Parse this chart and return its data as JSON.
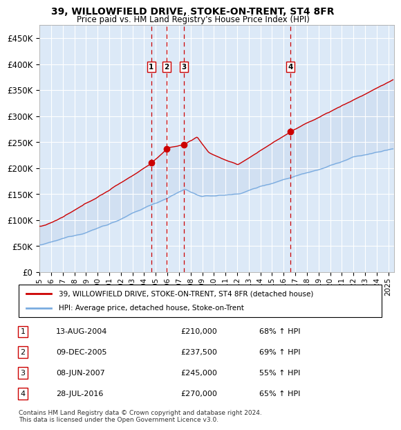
{
  "title": "39, WILLOWFIELD DRIVE, STOKE-ON-TRENT, ST4 8FR",
  "subtitle": "Price paid vs. HM Land Registry's House Price Index (HPI)",
  "ylim": [
    0,
    475000
  ],
  "yticks": [
    0,
    50000,
    100000,
    150000,
    200000,
    250000,
    300000,
    350000,
    400000,
    450000
  ],
  "ytick_labels": [
    "£0",
    "£50K",
    "£100K",
    "£150K",
    "£200K",
    "£250K",
    "£300K",
    "£350K",
    "£400K",
    "£450K"
  ],
  "xlim_start": 1995.0,
  "xlim_end": 2025.5,
  "background_color": "#dce9f7",
  "grid_color": "#ffffff",
  "red_line_color": "#cc0000",
  "blue_line_color": "#7aace0",
  "vline_color": "#cc0000",
  "transactions": [
    {
      "num": 1,
      "date_str": "13-AUG-2004",
      "year": 2004.62,
      "price": 210000,
      "pct": "68%",
      "direction": "↑"
    },
    {
      "num": 2,
      "date_str": "09-DEC-2005",
      "year": 2005.93,
      "price": 237500,
      "pct": "69%",
      "direction": "↑"
    },
    {
      "num": 3,
      "date_str": "08-JUN-2007",
      "year": 2007.43,
      "price": 245000,
      "pct": "55%",
      "direction": "↑"
    },
    {
      "num": 4,
      "date_str": "28-JUL-2016",
      "year": 2016.57,
      "price": 270000,
      "pct": "65%",
      "direction": "↑"
    }
  ],
  "legend_entries": [
    {
      "label": "39, WILLOWFIELD DRIVE, STOKE-ON-TRENT, ST4 8FR (detached house)",
      "color": "#cc0000"
    },
    {
      "label": "HPI: Average price, detached house, Stoke-on-Trent",
      "color": "#7aace0"
    }
  ],
  "footer_text": "Contains HM Land Registry data © Crown copyright and database right 2024.\nThis data is licensed under the Open Government Licence v3.0.",
  "xticks": [
    1995,
    1996,
    1997,
    1998,
    1999,
    2000,
    2001,
    2002,
    2003,
    2004,
    2005,
    2006,
    2007,
    2008,
    2009,
    2010,
    2011,
    2012,
    2013,
    2014,
    2015,
    2016,
    2017,
    2018,
    2019,
    2020,
    2021,
    2022,
    2023,
    2024,
    2025
  ]
}
